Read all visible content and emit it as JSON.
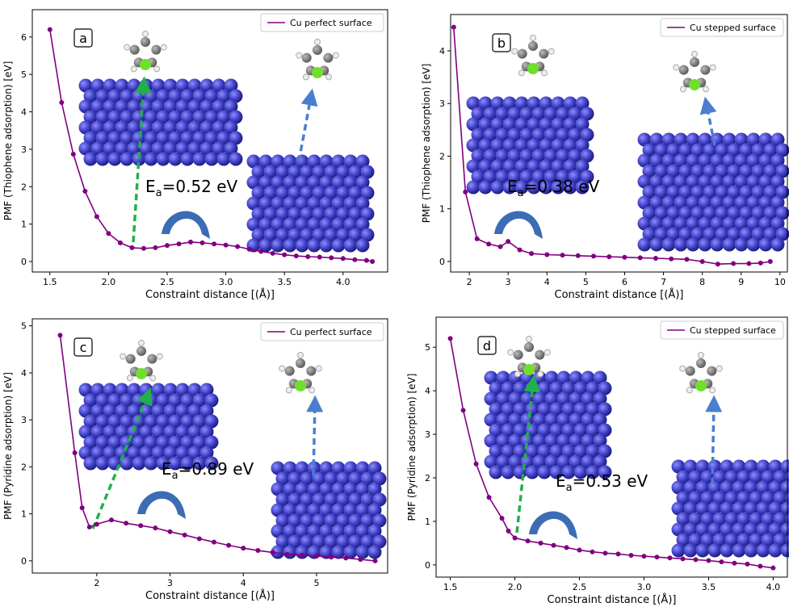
{
  "chart_data": [
    {
      "type": "line",
      "panel": "a",
      "xlabel": "Constraint distance [(Å)]",
      "ylabel": "PMF (Thiophene adsorption) [eV]",
      "annotation": [
        "E",
        "a",
        "=0.52 eV"
      ],
      "legend": "upper right",
      "xlim": [
        1.35,
        4.38
      ],
      "ylim": [
        -0.28,
        6.73
      ],
      "xticks": [
        1.5,
        {
          "value": 2,
          "label": "2.0"
        },
        2.5,
        {
          "value": 3,
          "label": "3.0"
        },
        3.5,
        {
          "value": 4,
          "label": "4.0"
        }
      ],
      "yticks": [
        0,
        1,
        2,
        3,
        4,
        5,
        6
      ],
      "x": [
        1.5,
        1.6,
        1.7,
        1.8,
        1.9,
        2.0,
        2.1,
        2.2,
        2.3,
        2.4,
        2.5,
        2.6,
        2.7,
        2.8,
        2.9,
        3.0,
        3.1,
        3.2,
        3.3,
        3.4,
        3.5,
        3.6,
        3.7,
        3.8,
        3.9,
        4.0,
        4.1,
        4.2,
        4.25
      ],
      "series": [
        {
          "name": "Cu perfect surface",
          "color": "#800080",
          "values": [
            6.2,
            4.25,
            2.87,
            1.88,
            1.2,
            0.75,
            0.5,
            0.37,
            0.35,
            0.37,
            0.43,
            0.47,
            0.52,
            0.5,
            0.47,
            0.44,
            0.4,
            0.33,
            0.27,
            0.22,
            0.18,
            0.15,
            0.13,
            0.12,
            0.1,
            0.08,
            0.05,
            0.03,
            0.0
          ]
        }
      ]
    },
    {
      "type": "line",
      "panel": "b",
      "xlabel": "Constraint distance [(Å)]",
      "ylabel": "PMF (Thiophene adsorption) [eV]",
      "annotation": [
        "E",
        "a",
        "=0.38 eV"
      ],
      "legend": "upper right",
      "xlim": [
        1.52,
        10.19
      ],
      "ylim": [
        -0.2,
        4.69
      ],
      "xticks": [
        2,
        3,
        4,
        5,
        6,
        7,
        8,
        9,
        10
      ],
      "yticks": [
        0,
        1,
        2,
        3,
        4
      ],
      "x": [
        1.6,
        1.9,
        2.2,
        2.5,
        2.8,
        3.0,
        3.3,
        3.6,
        4.0,
        4.4,
        4.8,
        5.2,
        5.6,
        6.0,
        6.4,
        6.8,
        7.2,
        7.6,
        8.0,
        8.4,
        8.8,
        9.2,
        9.5,
        9.75
      ],
      "series": [
        {
          "name": "Cu stepped surface",
          "color": "#800080",
          "values": [
            4.45,
            1.32,
            0.43,
            0.33,
            0.28,
            0.38,
            0.22,
            0.15,
            0.13,
            0.12,
            0.11,
            0.1,
            0.09,
            0.08,
            0.07,
            0.06,
            0.05,
            0.04,
            0.0,
            -0.05,
            -0.04,
            -0.04,
            -0.03,
            0.0
          ]
        }
      ]
    },
    {
      "type": "line",
      "panel": "c",
      "xlabel": "Constraint distance [(Å)]",
      "ylabel": "PMF (Pyridine adsorption) [eV]",
      "annotation": [
        "E",
        "a",
        "=0.89 eV"
      ],
      "legend": "upper right",
      "xlim": [
        1.12,
        5.97
      ],
      "ylim": [
        -0.26,
        5.15
      ],
      "xticks": [
        2,
        3,
        4,
        5
      ],
      "yticks": [
        0,
        1,
        2,
        3,
        4,
        5
      ],
      "x": [
        1.5,
        1.7,
        1.8,
        1.9,
        2.0,
        2.2,
        2.4,
        2.6,
        2.8,
        3.0,
        3.2,
        3.4,
        3.6,
        3.8,
        4.0,
        4.2,
        4.4,
        4.6,
        4.8,
        5.0,
        5.2,
        5.4,
        5.6,
        5.8
      ],
      "series": [
        {
          "name": "Cu perfect surface",
          "color": "#800080",
          "values": [
            4.8,
            2.3,
            1.13,
            0.72,
            0.78,
            0.87,
            0.8,
            0.75,
            0.7,
            0.62,
            0.55,
            0.47,
            0.4,
            0.33,
            0.27,
            0.22,
            0.18,
            0.14,
            0.12,
            0.1,
            0.08,
            0.06,
            0.03,
            0.0
          ]
        }
      ]
    },
    {
      "type": "line",
      "panel": "d",
      "xlabel": "Constraint distance [(Å)]",
      "ylabel": "PMF (Pyridine adsorption) [eV]",
      "annotation": [
        "E",
        "a",
        "=0.53 eV"
      ],
      "legend": "upper right",
      "xlim": [
        1.39,
        4.11
      ],
      "ylim": [
        -0.28,
        5.69
      ],
      "xticks": [
        1.5,
        {
          "value": 2,
          "label": "2.0"
        },
        2.5,
        {
          "value": 3,
          "label": "3.0"
        },
        3.5,
        {
          "value": 4,
          "label": "4.0"
        }
      ],
      "yticks": [
        0,
        1,
        2,
        3,
        4,
        5
      ],
      "x": [
        1.5,
        1.6,
        1.7,
        1.8,
        1.9,
        1.95,
        2.0,
        2.1,
        2.2,
        2.3,
        2.4,
        2.5,
        2.6,
        2.7,
        2.8,
        2.9,
        3.0,
        3.1,
        3.2,
        3.3,
        3.4,
        3.5,
        3.6,
        3.7,
        3.8,
        3.9,
        4.0
      ],
      "series": [
        {
          "name": "Cu stepped surface",
          "color": "#800080",
          "values": [
            5.2,
            3.55,
            2.32,
            1.55,
            1.07,
            0.78,
            0.62,
            0.55,
            0.5,
            0.45,
            0.4,
            0.34,
            0.3,
            0.27,
            0.25,
            0.22,
            0.2,
            0.18,
            0.16,
            0.14,
            0.12,
            0.1,
            0.07,
            0.04,
            0.02,
            -0.03,
            -0.07
          ]
        }
      ]
    }
  ]
}
